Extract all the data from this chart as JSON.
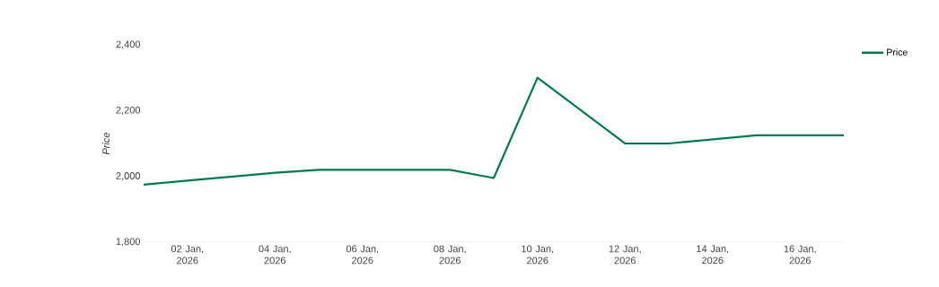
{
  "chart_data": {
    "type": "line",
    "ylabel": "Price",
    "legend": "top right",
    "grid": false,
    "x": [
      "2026-01-01",
      "2026-01-02",
      "2026-01-04",
      "2026-01-05",
      "2026-01-08",
      "2026-01-09",
      "2026-01-10",
      "2026-01-12",
      "2026-01-13",
      "2026-01-15",
      "2026-01-17"
    ],
    "series": [
      {
        "name": "Price",
        "color": "#007a53",
        "values": [
          1975,
          1987,
          2011,
          2020,
          2020,
          1995,
          2300,
          2100,
          2100,
          2125,
          2125
        ]
      }
    ],
    "xticks": [
      {
        "value": "2026-01-02",
        "label": "02 Jan, 2026"
      },
      {
        "value": "2026-01-04",
        "label": "04 Jan, 2026"
      },
      {
        "value": "2026-01-06",
        "label": "06 Jan, 2026"
      },
      {
        "value": "2026-01-08",
        "label": "08 Jan, 2026"
      },
      {
        "value": "2026-01-10",
        "label": "10 Jan, 2026"
      },
      {
        "value": "2026-01-12",
        "label": "12 Jan, 2026"
      },
      {
        "value": "2026-01-14",
        "label": "14 Jan, 2026"
      },
      {
        "value": "2026-01-16",
        "label": "16 Jan, 2026"
      }
    ],
    "xlim": [
      "2026-01-01",
      "2026-01-17"
    ],
    "ylim": [
      1800,
      2400
    ],
    "yticks": [
      {
        "value": 1800,
        "label": "1,800"
      },
      {
        "value": 2000,
        "label": "2,000"
      },
      {
        "value": 2200,
        "label": "2,200"
      },
      {
        "value": 2400,
        "label": "2,400"
      }
    ],
    "marker": "none",
    "line_style": "solid"
  }
}
